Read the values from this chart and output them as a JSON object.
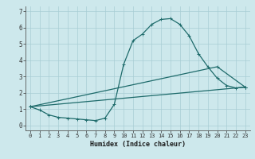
{
  "xlabel": "Humidex (Indice chaleur)",
  "bg_color": "#cde8ec",
  "grid_color": "#a8cdd4",
  "line_color": "#1e6b6b",
  "xlim": [
    -0.5,
    23.5
  ],
  "ylim": [
    -0.3,
    7.3
  ],
  "xticks": [
    0,
    1,
    2,
    3,
    4,
    5,
    6,
    7,
    8,
    9,
    10,
    11,
    12,
    13,
    14,
    15,
    16,
    17,
    18,
    19,
    20,
    21,
    22,
    23
  ],
  "yticks": [
    0,
    1,
    2,
    3,
    4,
    5,
    6,
    7
  ],
  "line1_x": [
    0,
    1,
    2,
    3,
    4,
    5,
    6,
    7,
    8,
    9,
    10,
    11,
    12,
    13,
    14,
    15,
    16,
    17,
    18,
    19,
    20,
    21,
    22,
    23
  ],
  "line1_y": [
    1.15,
    0.95,
    0.65,
    0.5,
    0.45,
    0.4,
    0.35,
    0.3,
    0.45,
    1.3,
    3.75,
    5.2,
    5.6,
    6.2,
    6.5,
    6.55,
    6.2,
    5.5,
    4.4,
    3.6,
    2.9,
    2.45,
    2.3,
    2.35
  ],
  "line2_x": [
    0,
    23
  ],
  "line2_y": [
    1.15,
    2.35
  ],
  "line3_x": [
    0,
    20,
    23
  ],
  "line3_y": [
    1.15,
    3.6,
    2.35
  ],
  "marker_size": 2.8,
  "linewidth": 0.9,
  "tick_fontsize": 5.0,
  "xlabel_fontsize": 6.0
}
